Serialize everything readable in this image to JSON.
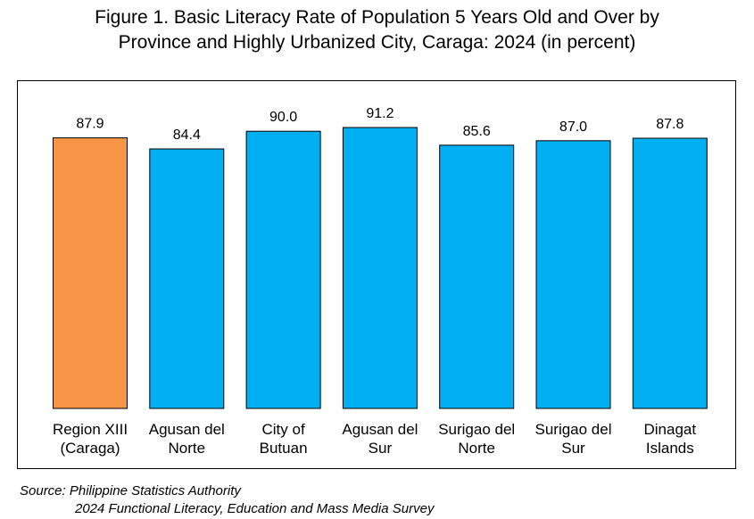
{
  "chart_data": {
    "type": "bar",
    "title_line1": "Figure 1. Basic Literacy Rate of Population 5 Years Old and Over by",
    "title_line2": "Province and Highly Urbanized City, Caraga: 2024 (in percent)",
    "categories": [
      [
        "Region XIII",
        "(Caraga)"
      ],
      [
        "Agusan del",
        "Norte"
      ],
      [
        "City of",
        "Butuan"
      ],
      [
        "Agusan del",
        "Sur"
      ],
      [
        "Surigao del",
        "Norte"
      ],
      [
        "Surigao del",
        "Sur"
      ],
      [
        "Dinagat",
        "Islands"
      ]
    ],
    "values": [
      87.9,
      84.4,
      90.0,
      91.2,
      85.6,
      87.0,
      87.8
    ],
    "value_labels": [
      "87.9",
      "84.4",
      "90.0",
      "91.2",
      "85.6",
      "87.0",
      "87.8"
    ],
    "colors": [
      "#F79646",
      "#00B0F0",
      "#00B0F0",
      "#00B0F0",
      "#00B0F0",
      "#00B0F0",
      "#00B0F0"
    ],
    "ylim": [
      0,
      100
    ],
    "grid": false,
    "legend": "none"
  },
  "source": {
    "line1": "Source: Philippine Statistics Authority",
    "line2": "2024 Functional Literacy, Education and Mass Media Survey"
  }
}
